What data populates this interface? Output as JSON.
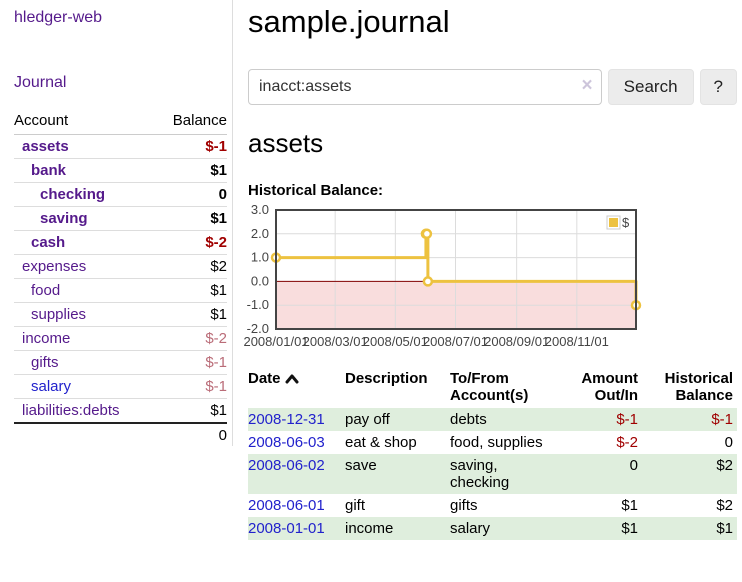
{
  "app": {
    "brand": "hledger-web"
  },
  "sidebar": {
    "journal_link": "Journal",
    "accounts_header": {
      "account": "Account",
      "balance": "Balance"
    },
    "accounts": [
      {
        "name": "assets",
        "balance": "$-1",
        "level": 0,
        "bold": true,
        "negative": "strong",
        "link": "purple"
      },
      {
        "name": "bank",
        "balance": "$1",
        "level": 1,
        "bold": true,
        "negative": "none",
        "link": "purple"
      },
      {
        "name": "checking",
        "balance": "0",
        "level": 2,
        "bold": true,
        "negative": "none",
        "link": "purple"
      },
      {
        "name": "saving",
        "balance": "$1",
        "level": 2,
        "bold": true,
        "negative": "none",
        "link": "purple"
      },
      {
        "name": "cash",
        "balance": "$-2",
        "level": 1,
        "bold": true,
        "negative": "strong",
        "link": "purple"
      },
      {
        "name": "expenses",
        "balance": "$2",
        "level": 0,
        "bold": false,
        "negative": "none",
        "link": "purple"
      },
      {
        "name": "food",
        "balance": "$1",
        "level": 1,
        "bold": false,
        "negative": "none",
        "link": "purple"
      },
      {
        "name": "supplies",
        "balance": "$1",
        "level": 1,
        "bold": false,
        "negative": "none",
        "link": "purple"
      },
      {
        "name": "income",
        "balance": "$-2",
        "level": 0,
        "bold": false,
        "negative": "muted",
        "link": "purple"
      },
      {
        "name": "gifts",
        "balance": "$-1",
        "level": 1,
        "bold": false,
        "negative": "muted",
        "link": "purple"
      },
      {
        "name": "salary",
        "balance": "$-1",
        "level": 1,
        "bold": false,
        "negative": "muted",
        "link": "blue"
      },
      {
        "name": "liabilities:debts",
        "balance": "$1",
        "level": 0,
        "bold": false,
        "negative": "none",
        "link": "purple"
      }
    ],
    "total": "0"
  },
  "main": {
    "title": "sample.journal",
    "search": {
      "value": "inacct:assets",
      "clear_icon": "×",
      "button_label": "Search",
      "help_label": "?"
    },
    "account_heading": "assets",
    "chart_label": "Historical Balance:"
  },
  "chart_data": {
    "type": "line",
    "title": "Historical Balance",
    "step": true,
    "series": [
      {
        "name": "$",
        "color": "#edc240",
        "dates": [
          "2008-01-01",
          "2008-06-01",
          "2008-06-02",
          "2008-06-03",
          "2008-12-31"
        ],
        "points": [
          [
            0,
            1
          ],
          [
            152,
            2
          ],
          [
            153,
            2
          ],
          [
            154,
            0
          ],
          [
            365,
            -1
          ]
        ]
      }
    ],
    "x_ticks": [
      "2008/01/01",
      "2008/03/01",
      "2008/05/01",
      "2008/07/01",
      "2008/09/01",
      "2008/11/01"
    ],
    "x_tick_days": [
      0,
      60,
      121,
      182,
      244,
      305
    ],
    "x_domain_days": [
      0,
      365
    ],
    "y_ticks": [
      "3.0",
      "2.0",
      "1.0",
      "0.0",
      "-1.0",
      "-2.0"
    ],
    "ylim": [
      -2,
      3
    ],
    "grid": true,
    "legend_position": "top-right",
    "colors": {
      "negative_fill": "#f9dddd",
      "zero_line": "#800000",
      "grid": "#dcdcdc",
      "border": "#444444",
      "tick_text": "#444444"
    }
  },
  "register": {
    "columns": [
      "Date",
      "Description",
      "To/From Account(s)",
      "Amount Out/In",
      "Historical Balance"
    ],
    "rows": [
      {
        "date": "2008-12-31",
        "description": "pay off",
        "accounts": "debts",
        "amount": "$-1",
        "balance": "$-1"
      },
      {
        "date": "2008-06-03",
        "description": "eat & shop",
        "accounts": "food, supplies",
        "amount": "$-2",
        "balance": "0"
      },
      {
        "date": "2008-06-02",
        "description": "save",
        "accounts": "saving, checking",
        "amount": "0",
        "balance": "$2"
      },
      {
        "date": "2008-06-01",
        "description": "gift",
        "accounts": "gifts",
        "amount": "$1",
        "balance": "$2"
      },
      {
        "date": "2008-01-01",
        "description": "income",
        "accounts": "salary",
        "amount": "$1",
        "balance": "$1"
      }
    ]
  }
}
